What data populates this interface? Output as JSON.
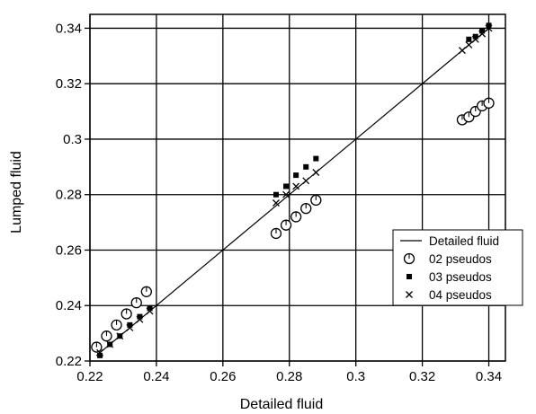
{
  "chart_data": {
    "type": "scatter",
    "title": "",
    "xlabel": "Detailed fluid",
    "ylabel": "Lumped fluid",
    "xlim": [
      0.22,
      0.345
    ],
    "ylim": [
      0.22,
      0.345
    ],
    "xticks": [
      0.22,
      0.24,
      0.26,
      0.28,
      0.3,
      0.32,
      0.34
    ],
    "yticks": [
      0.22,
      0.24,
      0.26,
      0.28,
      0.3,
      0.32,
      0.34
    ],
    "xtick_labels": [
      "0.22",
      "0.24",
      "0.26",
      "0.28",
      "0.3",
      "0.32",
      "0.34"
    ],
    "ytick_labels": [
      "0.22",
      "0.24",
      "0.26",
      "0.28",
      "0.3",
      "0.32",
      "0.34"
    ],
    "grid": true,
    "legend_position": "right",
    "line": {
      "name": "Detailed fluid",
      "x": [
        0.222,
        0.34
      ],
      "y": [
        0.222,
        0.34
      ]
    },
    "series": [
      {
        "name": "02 pseudos",
        "marker": "open-circle",
        "x": [
          0.222,
          0.225,
          0.228,
          0.231,
          0.234,
          0.237,
          0.276,
          0.279,
          0.282,
          0.285,
          0.288,
          0.332,
          0.334,
          0.336,
          0.338,
          0.34
        ],
        "y": [
          0.225,
          0.229,
          0.233,
          0.237,
          0.241,
          0.245,
          0.266,
          0.269,
          0.272,
          0.275,
          0.278,
          0.307,
          0.308,
          0.31,
          0.312,
          0.313
        ]
      },
      {
        "name": "03 pseudos",
        "marker": "filled-square",
        "x": [
          0.223,
          0.226,
          0.229,
          0.232,
          0.235,
          0.238,
          0.276,
          0.279,
          0.282,
          0.285,
          0.288,
          0.334,
          0.336,
          0.338,
          0.34
        ],
        "y": [
          0.222,
          0.226,
          0.229,
          0.233,
          0.236,
          0.239,
          0.28,
          0.283,
          0.287,
          0.29,
          0.293,
          0.336,
          0.337,
          0.339,
          0.341
        ]
      },
      {
        "name": "04 pseudos",
        "marker": "cross",
        "x": [
          0.223,
          0.226,
          0.229,
          0.232,
          0.235,
          0.238,
          0.276,
          0.279,
          0.282,
          0.285,
          0.288,
          0.332,
          0.334,
          0.336,
          0.338,
          0.34
        ],
        "y": [
          0.223,
          0.226,
          0.229,
          0.232,
          0.235,
          0.238,
          0.277,
          0.28,
          0.283,
          0.285,
          0.288,
          0.332,
          0.334,
          0.336,
          0.338,
          0.34
        ]
      }
    ],
    "legend": [
      "Detailed fluid",
      "02 pseudos",
      "03 pseudos",
      "04 pseudos"
    ]
  }
}
